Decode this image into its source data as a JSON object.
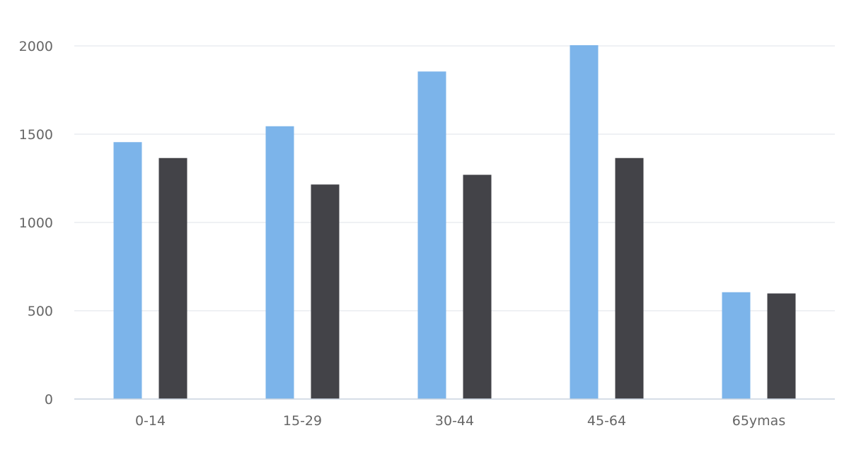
{
  "chart_data": {
    "type": "bar",
    "categories": [
      "0-14",
      "15-29",
      "30-44",
      "45-64",
      "65ymas"
    ],
    "series": [
      {
        "values": [
          1455,
          1545,
          1855,
          2005,
          605
        ],
        "color": "#7cb4ea"
      },
      {
        "values": [
          1365,
          1215,
          1270,
          1365,
          598
        ],
        "color": "#434348"
      }
    ],
    "ylim": [
      0,
      2000
    ],
    "yticks": [
      0,
      500,
      1000,
      1500,
      2000
    ],
    "grid": true,
    "legend": "none",
    "title": "",
    "xlabel": "",
    "ylabel": ""
  }
}
